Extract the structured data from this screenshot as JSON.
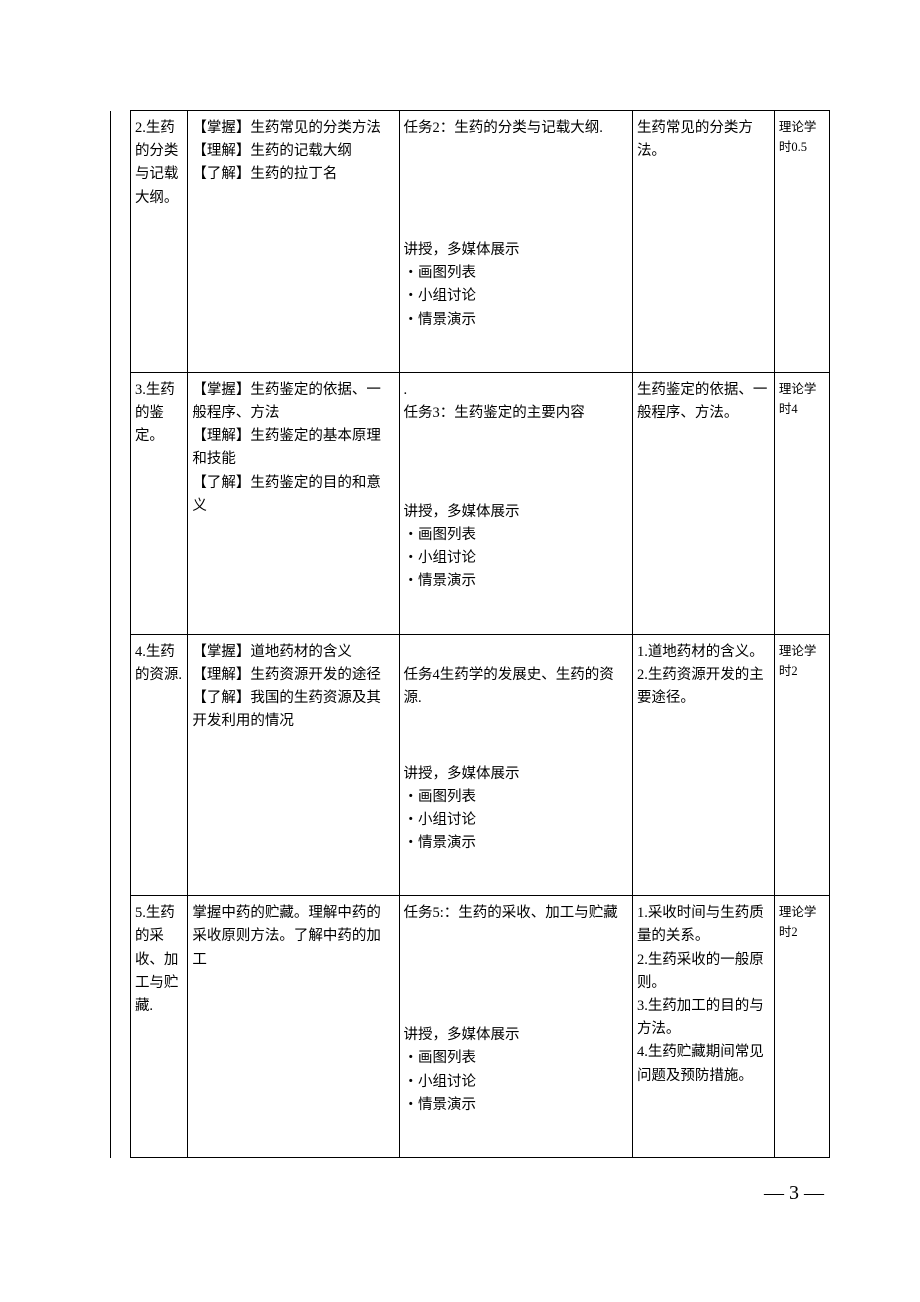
{
  "rows": [
    {
      "c1": "2.生药的分类与记载大纲。",
      "c2": "【掌握】生药常见的分类方法\n【理解】生药的记载大纲\n【了解】生药的拉丁名",
      "c3a": "任务2：生药的分类与记载大纲.",
      "c3b": "讲授，多媒体展示\n・画图列表\n・小组讨论\n・情景演示",
      "c4": "生药常见的分类方法。",
      "c5": "理论学时0.5"
    },
    {
      "c1": "3.生药的鉴定。",
      "c2": "【掌握】生药鉴定的依据、一般程序、方法\n【理解】生药鉴定的基本原理和技能\n【了解】生药鉴定的目的和意义",
      "c3a": ".\n任务3：生药鉴定的主要内容",
      "c3b": "讲授，多媒体展示\n・画图列表\n・小组讨论\n・情景演示",
      "c4": "生药鉴定的依据、一般程序、方法。",
      "c5": "理论学时4"
    },
    {
      "c1": "4.生药的资源.",
      "c2": "【掌握】道地药材的含义\n【理解】生药资源开发的途径\n【了解】我国的生药资源及其开发利用的情况",
      "c3a": "\n任务4生药学的发展史、生药的资源.",
      "c3b": "讲授，多媒体展示\n・画图列表\n・小组讨论\n・情景演示",
      "c4": "1.道地药材的含义。\n2.生药资源开发的主要途径。",
      "c5": "理论学时2"
    },
    {
      "c1": "5.生药的采收、加工与贮藏.",
      "c2": "掌握中药的贮藏。理解中药的采收原则方法。了解中药的加工",
      "c3a": "任务5:：生药的采收、加工与贮藏",
      "c3b": "讲授，多媒体展示\n・画图列表\n・小组讨论\n・情景演示",
      "c4": "1.采收时间与生药质量的关系。\n2.生药采收的一般原则。\n3.生药加工的目的与方法。\n4.生药贮藏期间常见问题及预防措施。",
      "c5": "理论学时2"
    }
  ],
  "pageNumber": "— 3 —"
}
